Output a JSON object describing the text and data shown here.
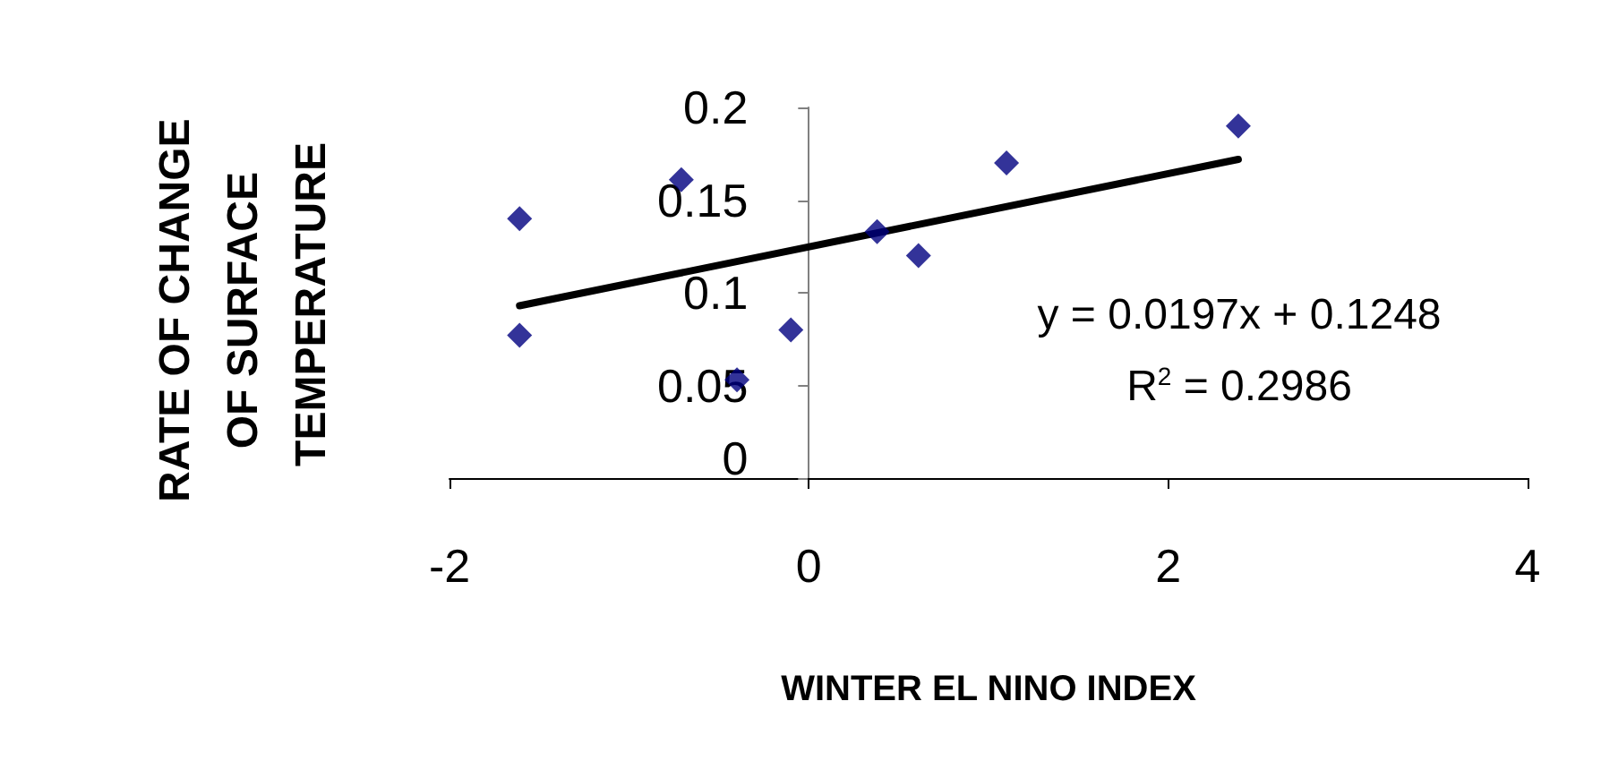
{
  "chart_data": {
    "type": "scatter",
    "xlabel": "WINTER EL NINO INDEX",
    "ylabel": "RATE OF CHANGE OF SURFACE TEMPERATURE",
    "series": [
      {
        "type": "scatter",
        "color": "#000080",
        "marker": "diamond",
        "x": [
          -1.61,
          -1.61,
          -0.71,
          -0.4,
          -0.1,
          0.38,
          0.61,
          1.1,
          2.39
        ],
        "values": [
          0.14,
          0.077,
          0.161,
          0.053,
          0.08,
          0.133,
          0.12,
          0.17,
          0.19
        ]
      },
      {
        "type": "line",
        "color": "#000000",
        "marker": "none",
        "line_style": "solid",
        "x": [
          -1.61,
          2.39
        ],
        "values": [
          0.093,
          0.172
        ]
      }
    ],
    "xlim": [
      -2,
      4
    ],
    "xticks": [
      -2,
      0,
      2,
      4
    ],
    "ylim": [
      0,
      0.2
    ],
    "yticks": [
      0,
      0.05,
      0.1,
      0.15,
      0.2
    ],
    "grid": false,
    "annotations": [
      "y = 0.0197x + 0.1248",
      "R$^{2}$ = 0.2986"
    ]
  }
}
